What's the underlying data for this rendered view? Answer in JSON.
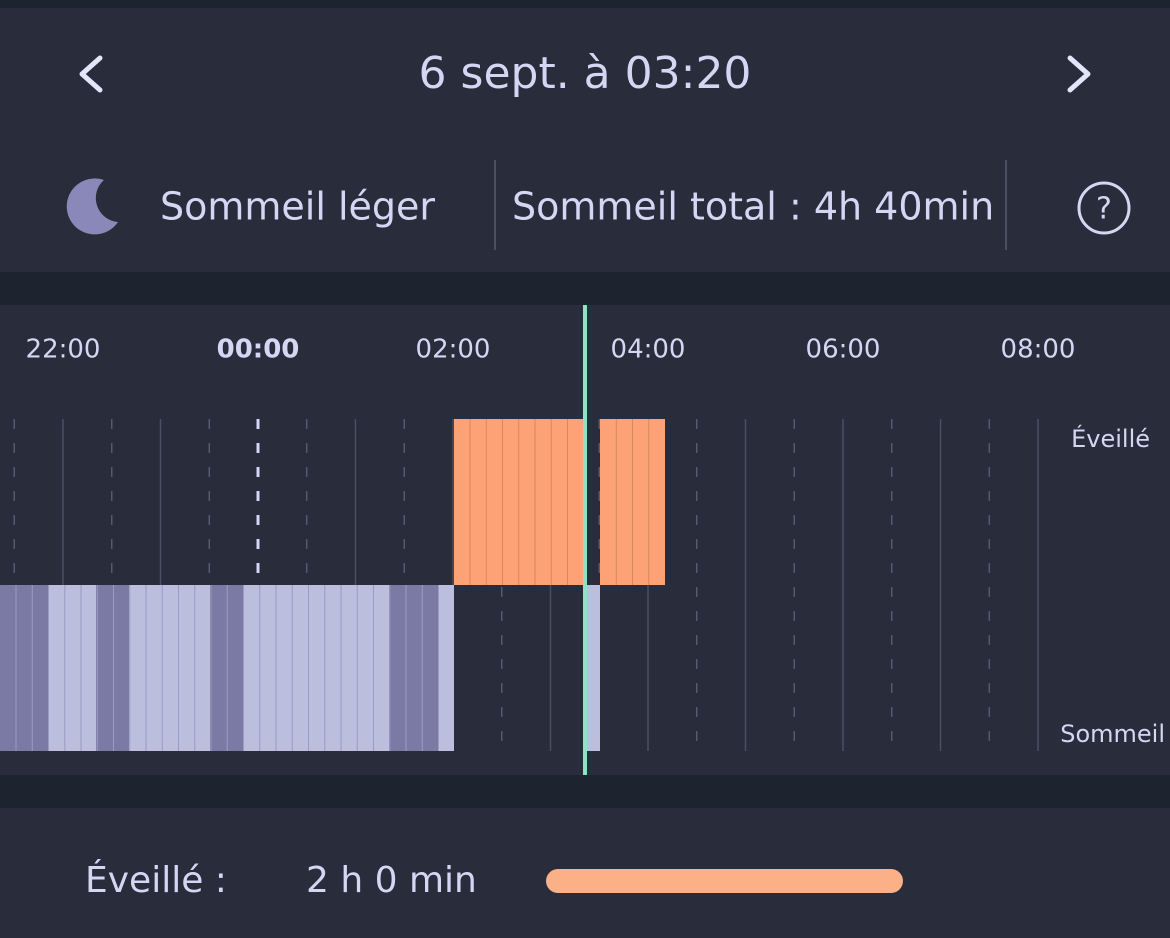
{
  "header": {
    "title": "6 sept. à 03:20"
  },
  "status": {
    "stage": "Sommeil léger",
    "total": "Sommeil total : 4h 40min"
  },
  "timeline": {
    "times": [
      "22:00",
      "00:00",
      "02:00",
      "04:00",
      "06:00",
      "08:00"
    ],
    "awake_label": "Éveillé",
    "sleep_label": "Sommeil"
  },
  "summary": {
    "label": "Éveillé :",
    "value": "2 h 0 min"
  }
}
